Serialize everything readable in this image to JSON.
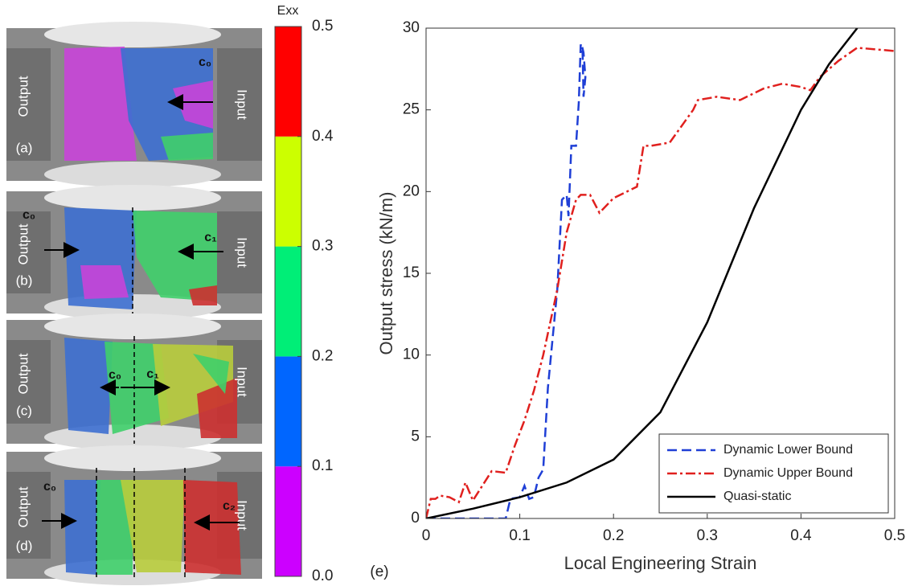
{
  "chart_data": [
    {
      "type": "line",
      "xlabel": "Local Engineering Strain",
      "ylabel": "Output stress (kN/m)",
      "panel_label": "(e)",
      "xlim": [
        0,
        0.5
      ],
      "ylim": [
        0,
        30
      ],
      "xticks": [
        0,
        0.1,
        0.2,
        0.3,
        0.4,
        0.5
      ],
      "yticks": [
        0,
        5,
        10,
        15,
        20,
        25,
        30
      ],
      "grid": false,
      "legend": "lower right",
      "series": [
        {
          "name": "Dynamic Lower Bound",
          "color": "#1f3fd6",
          "dash": "dashed",
          "x": [
            0,
            0.085,
            0.09,
            0.1,
            0.105,
            0.11,
            0.115,
            0.12,
            0.125,
            0.13,
            0.14,
            0.145,
            0.15,
            0.152,
            0.155,
            0.16,
            0.163,
            0.165,
            0.167,
            0.168,
            0.17,
            0.168,
            0.166
          ],
          "values": [
            0,
            0,
            1.2,
            1.3,
            2,
            1.2,
            1.3,
            2.5,
            3,
            8,
            14,
            19.5,
            19.8,
            18.5,
            22.8,
            22.8,
            25.5,
            29,
            28.5,
            25.8,
            27,
            28.5,
            29
          ]
        },
        {
          "name": "Dynamic Upper Bound",
          "color": "#e0201e",
          "dash": "dashdot",
          "x": [
            0,
            0.005,
            0.01,
            0.015,
            0.025,
            0.035,
            0.042,
            0.05,
            0.07,
            0.085,
            0.095,
            0.105,
            0.115,
            0.125,
            0.14,
            0.15,
            0.16,
            0.165,
            0.175,
            0.185,
            0.2,
            0.225,
            0.232,
            0.24,
            0.26,
            0.275,
            0.285,
            0.29,
            0.3,
            0.31,
            0.335,
            0.36,
            0.38,
            0.4,
            0.41,
            0.42,
            0.44,
            0.46,
            0.48,
            0.5
          ],
          "values": [
            0,
            1.2,
            1.2,
            1.4,
            1.3,
            1,
            2.2,
            1.1,
            2.9,
            2.8,
            4.5,
            6,
            7.8,
            10,
            14,
            17.5,
            19.5,
            19.8,
            19.8,
            18.7,
            19.6,
            20.3,
            22.8,
            22.8,
            23,
            24.2,
            25,
            25.6,
            25.7,
            25.8,
            25.6,
            26.3,
            26.6,
            26.4,
            26.2,
            27,
            28,
            28.8,
            28.7,
            28.6
          ]
        },
        {
          "name": "Quasi-static",
          "color": "#000000",
          "dash": "solid",
          "x": [
            0,
            0.05,
            0.1,
            0.15,
            0.2,
            0.25,
            0.3,
            0.35,
            0.4,
            0.43,
            0.46
          ],
          "values": [
            0,
            0.6,
            1.3,
            2.2,
            3.6,
            6.5,
            12,
            19,
            25,
            27.8,
            30
          ]
        }
      ]
    },
    {
      "type": "colorbar",
      "title": "Exx",
      "ylim": [
        0,
        0.5
      ],
      "yticks": [
        {
          "value": 0,
          "label": "0.0"
        },
        0.1,
        0.2,
        0.3,
        0.4,
        0.5
      ],
      "colors": [
        "#cc00ff",
        "#0066ff",
        "#00ee77",
        "#ccff00",
        "#ff0000"
      ]
    }
  ],
  "panels": [
    {
      "label": "(a)",
      "output": "Output",
      "input": "Input",
      "c_labels": [
        "c₀"
      ]
    },
    {
      "label": "(b)",
      "output": "Output",
      "input": "Input",
      "c_labels": [
        "c₀",
        "c₁"
      ]
    },
    {
      "label": "(c)",
      "output": "Output",
      "input": "Input",
      "c_labels": [
        "c₀",
        "c₁"
      ]
    },
    {
      "label": "(d)",
      "output": "Output",
      "input": "Input",
      "c_labels": [
        "c₀",
        "c₂"
      ]
    }
  ]
}
